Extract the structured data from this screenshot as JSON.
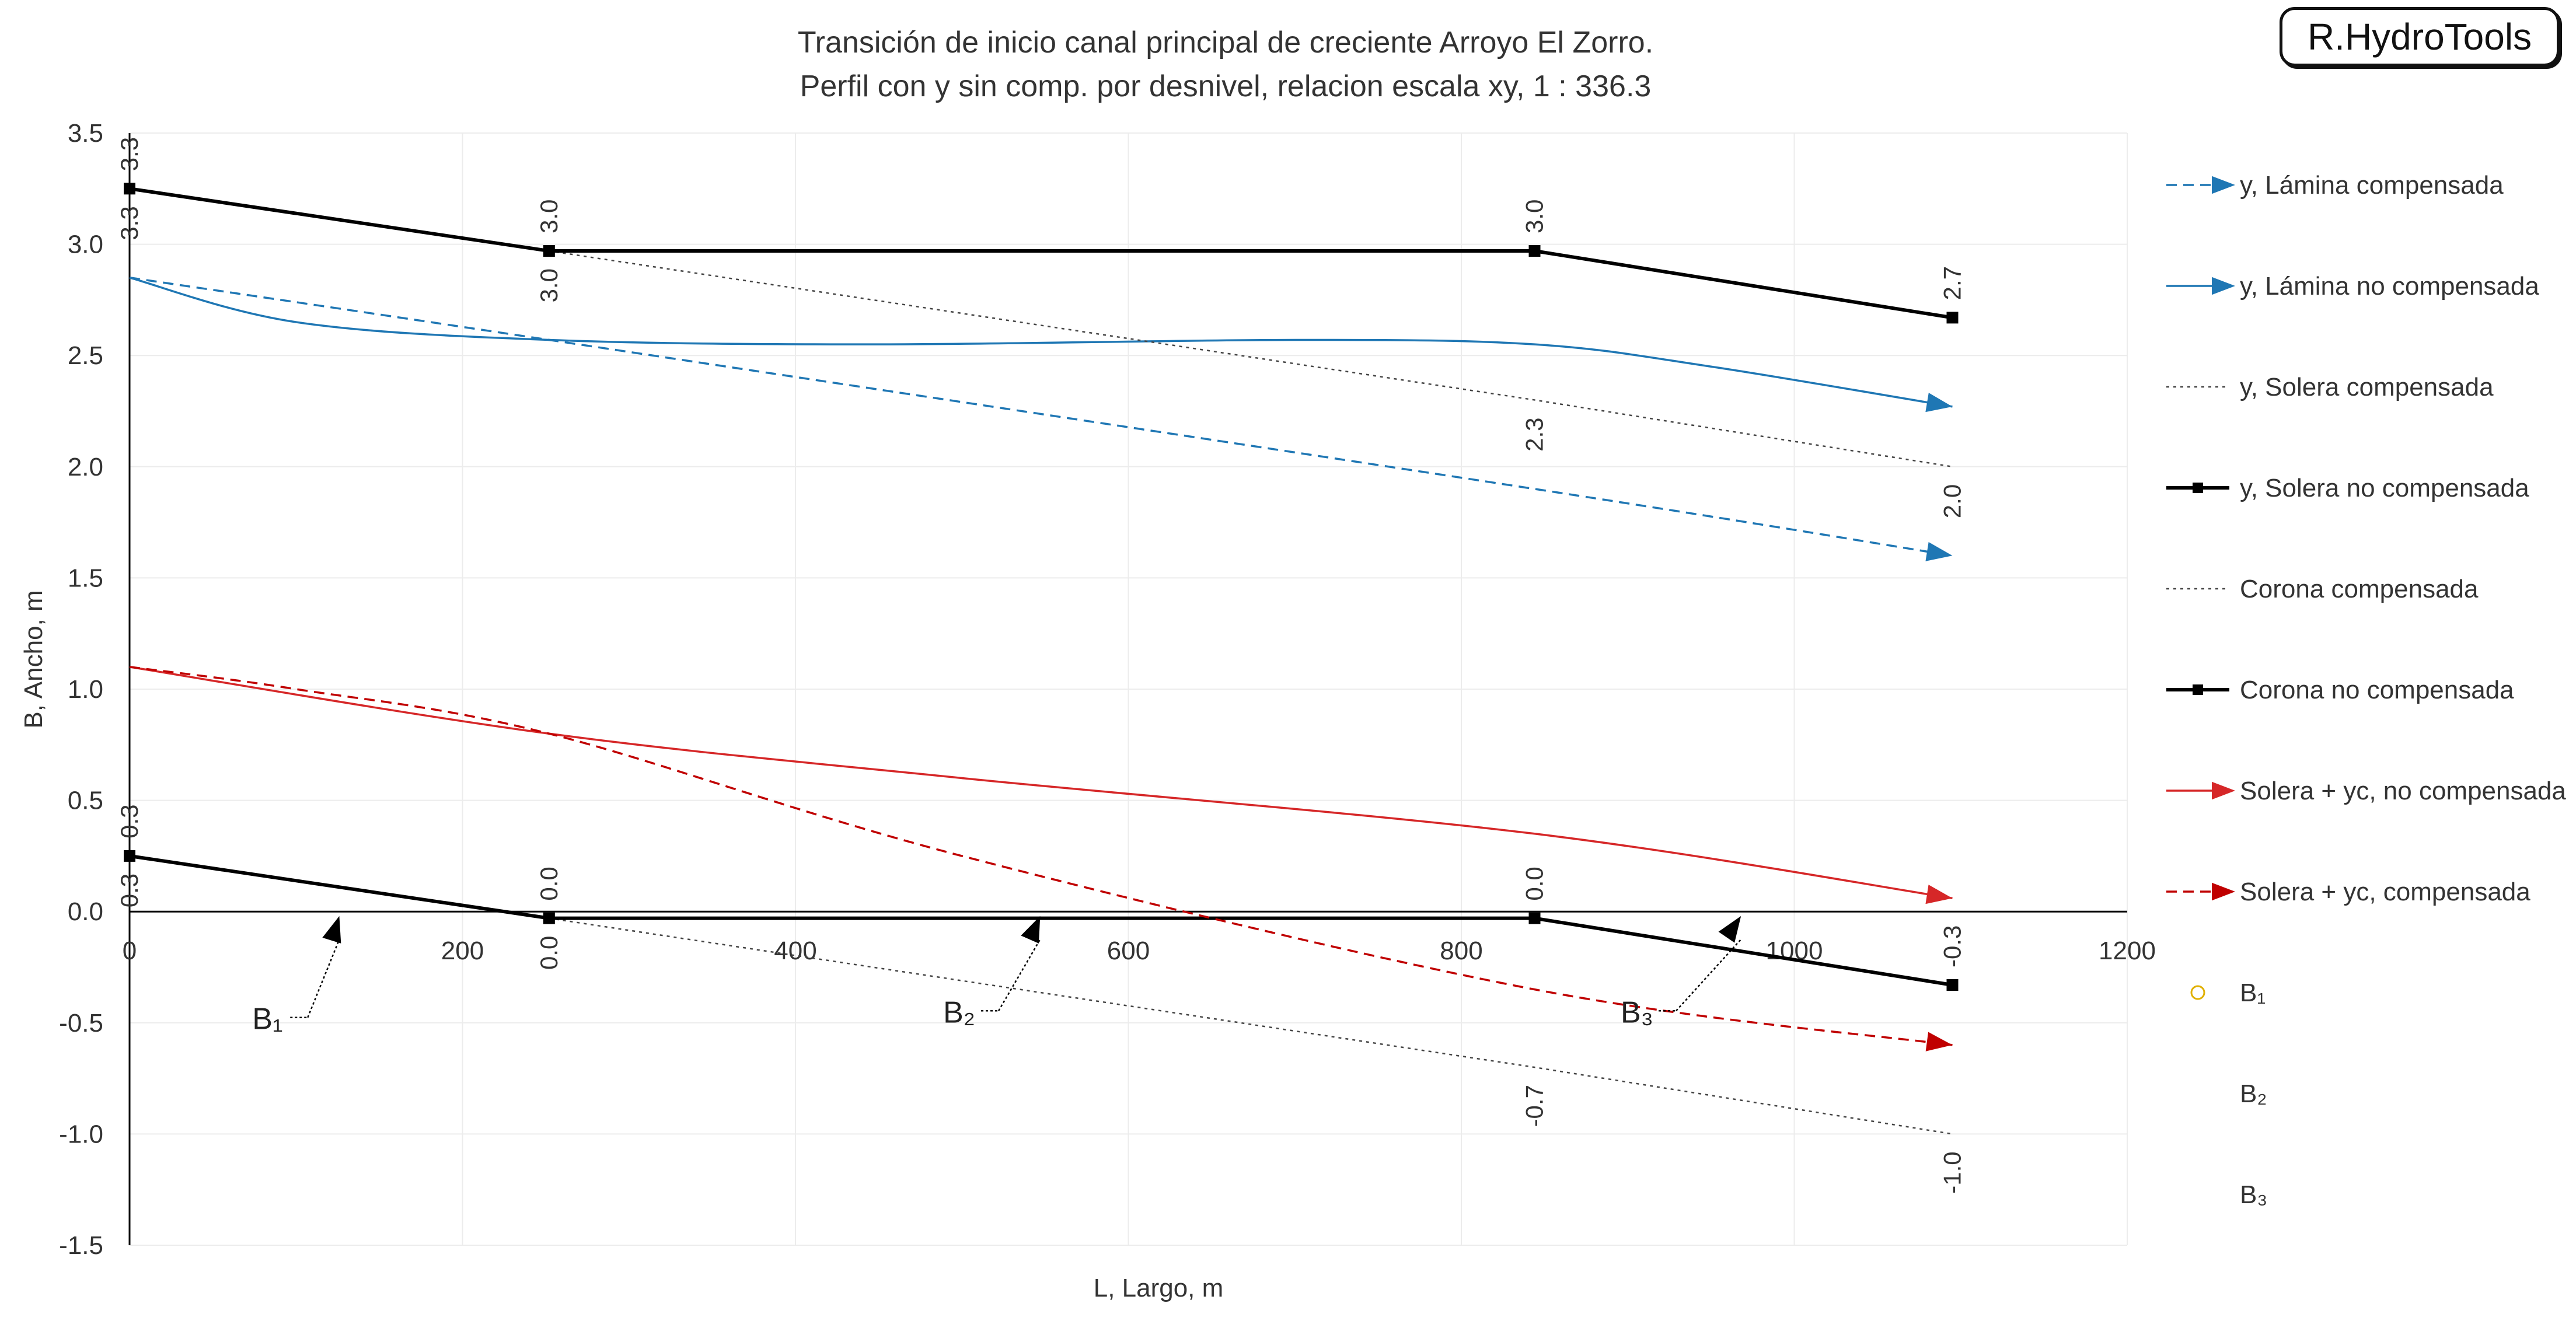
{
  "brand": "R.HydroTools",
  "chart_data": {
    "type": "line",
    "title": "Transición de inicio canal principal de creciente Arroyo El Zorro.",
    "subtitle": "Perfil con y sin comp. por desnivel, relacion escala xy,  1 : 336.3",
    "xlabel": "L, Largo, m",
    "ylabel": "B, Ancho, m",
    "xlim": [
      0,
      1200
    ],
    "ylim": [
      -1.5,
      3.5
    ],
    "xticks": [
      0,
      200,
      400,
      600,
      800,
      1000,
      1200
    ],
    "yticks": [
      -1.5,
      -1.0,
      -0.5,
      0.0,
      0.5,
      1.0,
      1.5,
      2.0,
      2.5,
      3.0,
      3.5
    ],
    "grid": true,
    "legend_position": "right",
    "series": [
      {
        "name": "y, Lámina compensada",
        "color": "#1f77b4",
        "dash": "dashed",
        "marker": "arrow",
        "x": [
          0,
          252,
          844,
          1095
        ],
        "y": [
          2.85,
          2.57,
          1.9,
          1.6
        ]
      },
      {
        "name": "y, Lámina no compensada",
        "color": "#1f77b4",
        "dash": "solid",
        "marker": "arrow",
        "x": [
          0,
          100,
          252,
          450,
          700,
          844,
          950,
          1095
        ],
        "y": [
          2.85,
          2.65,
          2.57,
          2.55,
          2.57,
          2.55,
          2.45,
          2.27
        ]
      },
      {
        "name": "y, Solera compensada",
        "color": "#444444",
        "dash": "dotted",
        "marker": "none",
        "x": [
          252,
          844,
          1095
        ],
        "y": [
          2.97,
          2.3,
          2.0
        ]
      },
      {
        "name": "y, Solera no compensada",
        "color": "#000000",
        "dash": "solid",
        "marker": "square",
        "x": [
          0,
          252,
          844,
          1095
        ],
        "y": [
          3.25,
          2.97,
          2.97,
          2.67
        ]
      },
      {
        "name": "Corona compensada",
        "color": "#444444",
        "dash": "dotted",
        "marker": "none",
        "x": [
          252,
          844,
          1095
        ],
        "y": [
          -0.03,
          -0.7,
          -1.0
        ]
      },
      {
        "name": "Corona no compensada",
        "color": "#000000",
        "dash": "solid",
        "marker": "square",
        "x": [
          0,
          252,
          844,
          1095
        ],
        "y": [
          0.25,
          -0.03,
          -0.03,
          -0.33
        ]
      },
      {
        "name": "Solera + yc, no compensada",
        "color": "#d62728",
        "dash": "solid",
        "marker": "arrow",
        "x": [
          0,
          252,
          500,
          844,
          1095
        ],
        "y": [
          1.1,
          0.8,
          0.6,
          0.35,
          0.06
        ]
      },
      {
        "name": "Solera + yc, compensada",
        "color": "#c00000",
        "dash": "dashed",
        "marker": "arrow",
        "x": [
          0,
          100,
          252,
          500,
          844,
          1095
        ],
        "y": [
          1.1,
          1.0,
          0.8,
          0.25,
          -0.35,
          -0.6
        ]
      },
      {
        "name": "B₁",
        "color": "#e0b000",
        "dash": "none",
        "marker": "circle",
        "x": [],
        "y": []
      },
      {
        "name": "B₂",
        "color": "#ffffff",
        "dash": "none",
        "marker": "none",
        "x": [],
        "y": []
      },
      {
        "name": "B₃",
        "color": "#ffffff",
        "dash": "none",
        "marker": "none",
        "x": [],
        "y": []
      }
    ],
    "data_labels": [
      {
        "text": "3.3",
        "x": 0,
        "y": 3.25,
        "pos": "above"
      },
      {
        "text": "3.3",
        "x": 0,
        "y": 3.25,
        "pos": "below"
      },
      {
        "text": "3.0",
        "x": 252,
        "y": 2.97,
        "pos": "above"
      },
      {
        "text": "3.0",
        "x": 252,
        "y": 2.97,
        "pos": "below"
      },
      {
        "text": "3.0",
        "x": 844,
        "y": 2.97,
        "pos": "above"
      },
      {
        "text": "2.3",
        "x": 844,
        "y": 2.3,
        "pos": "below"
      },
      {
        "text": "2.7",
        "x": 1095,
        "y": 2.67,
        "pos": "above"
      },
      {
        "text": "2.0",
        "x": 1095,
        "y": 2.0,
        "pos": "below"
      },
      {
        "text": "0.3",
        "x": 0,
        "y": 0.25,
        "pos": "above"
      },
      {
        "text": "0.3",
        "x": 0,
        "y": 0.25,
        "pos": "below"
      },
      {
        "text": "0.0",
        "x": 252,
        "y": -0.03,
        "pos": "above"
      },
      {
        "text": "0.0",
        "x": 252,
        "y": -0.03,
        "pos": "below"
      },
      {
        "text": "0.0",
        "x": 844,
        "y": -0.03,
        "pos": "above"
      },
      {
        "text": "-0.7",
        "x": 844,
        "y": -0.7,
        "pos": "below"
      },
      {
        "text": "-0.3",
        "x": 1095,
        "y": -0.33,
        "pos": "above"
      },
      {
        "text": "-1.0",
        "x": 1095,
        "y": -1.0,
        "pos": "below"
      }
    ],
    "annotations": [
      {
        "text": "B₁",
        "label_x": 93,
        "label_y": -0.45,
        "tip_x": 126,
        "tip_y": -0.02
      },
      {
        "text": "B₂",
        "label_x": 508,
        "label_y": -0.42,
        "tip_x": 547,
        "tip_y": -0.02
      },
      {
        "text": "B₃",
        "label_x": 915,
        "label_y": -0.42,
        "tip_x": 968,
        "tip_y": -0.02
      }
    ]
  }
}
